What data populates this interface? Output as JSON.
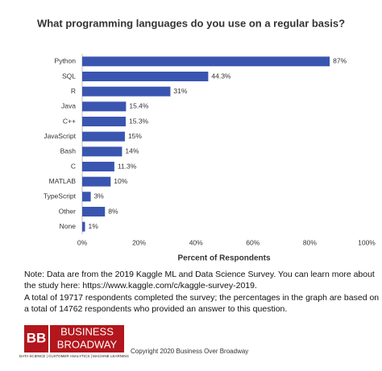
{
  "chart_data": {
    "type": "hbar",
    "title": "What programming languages do you use on a regular basis?",
    "categories": [
      "Python",
      "SQL",
      "R",
      "Java",
      "C++",
      "JavaScript",
      "Bash",
      "C",
      "MATLAB",
      "TypeScript",
      "Other",
      "None"
    ],
    "values": [
      87,
      44.3,
      31,
      15.4,
      15.3,
      15,
      14,
      11.3,
      10,
      3,
      8,
      1
    ],
    "value_labels": [
      "87%",
      "44.3%",
      "31%",
      "15.4%",
      "15.3%",
      "15%",
      "14%",
      "11.3%",
      "10%",
      "3%",
      "8%",
      "1%"
    ],
    "color": "#3a55b0",
    "xlim": [
      0,
      100
    ],
    "xticks": [
      {
        "value": 0,
        "label": "0%"
      },
      {
        "value": 20,
        "label": "20%"
      },
      {
        "value": 40,
        "label": "40%"
      },
      {
        "value": 60,
        "label": "60%"
      },
      {
        "value": 80,
        "label": "80%"
      },
      {
        "value": 100,
        "label": "100%"
      }
    ],
    "xlabel": "Percent of Respondents",
    "grid": false
  },
  "notes": [
    "Note: Data are from the 2019 Kaggle ML and Data Science Survey. You can learn more about",
    "the study here: https://www.kaggle.com/c/kaggle-survey-2019.",
    "A total of 19717 respondents completed the survey; the percentages in the graph are based on",
    "a total of 14762 respondents who provided an answer to this question."
  ],
  "footer": {
    "logo_mark": "BB",
    "logo_line1": "BUSINESS",
    "logo_line2": "BROADWAY",
    "logo_tagline": "DATA SCIENCE | CUSTOMER ANALYTICS | MACHINE LEARNING",
    "copyright": "Copyright 2020 Business Over Broadway"
  }
}
